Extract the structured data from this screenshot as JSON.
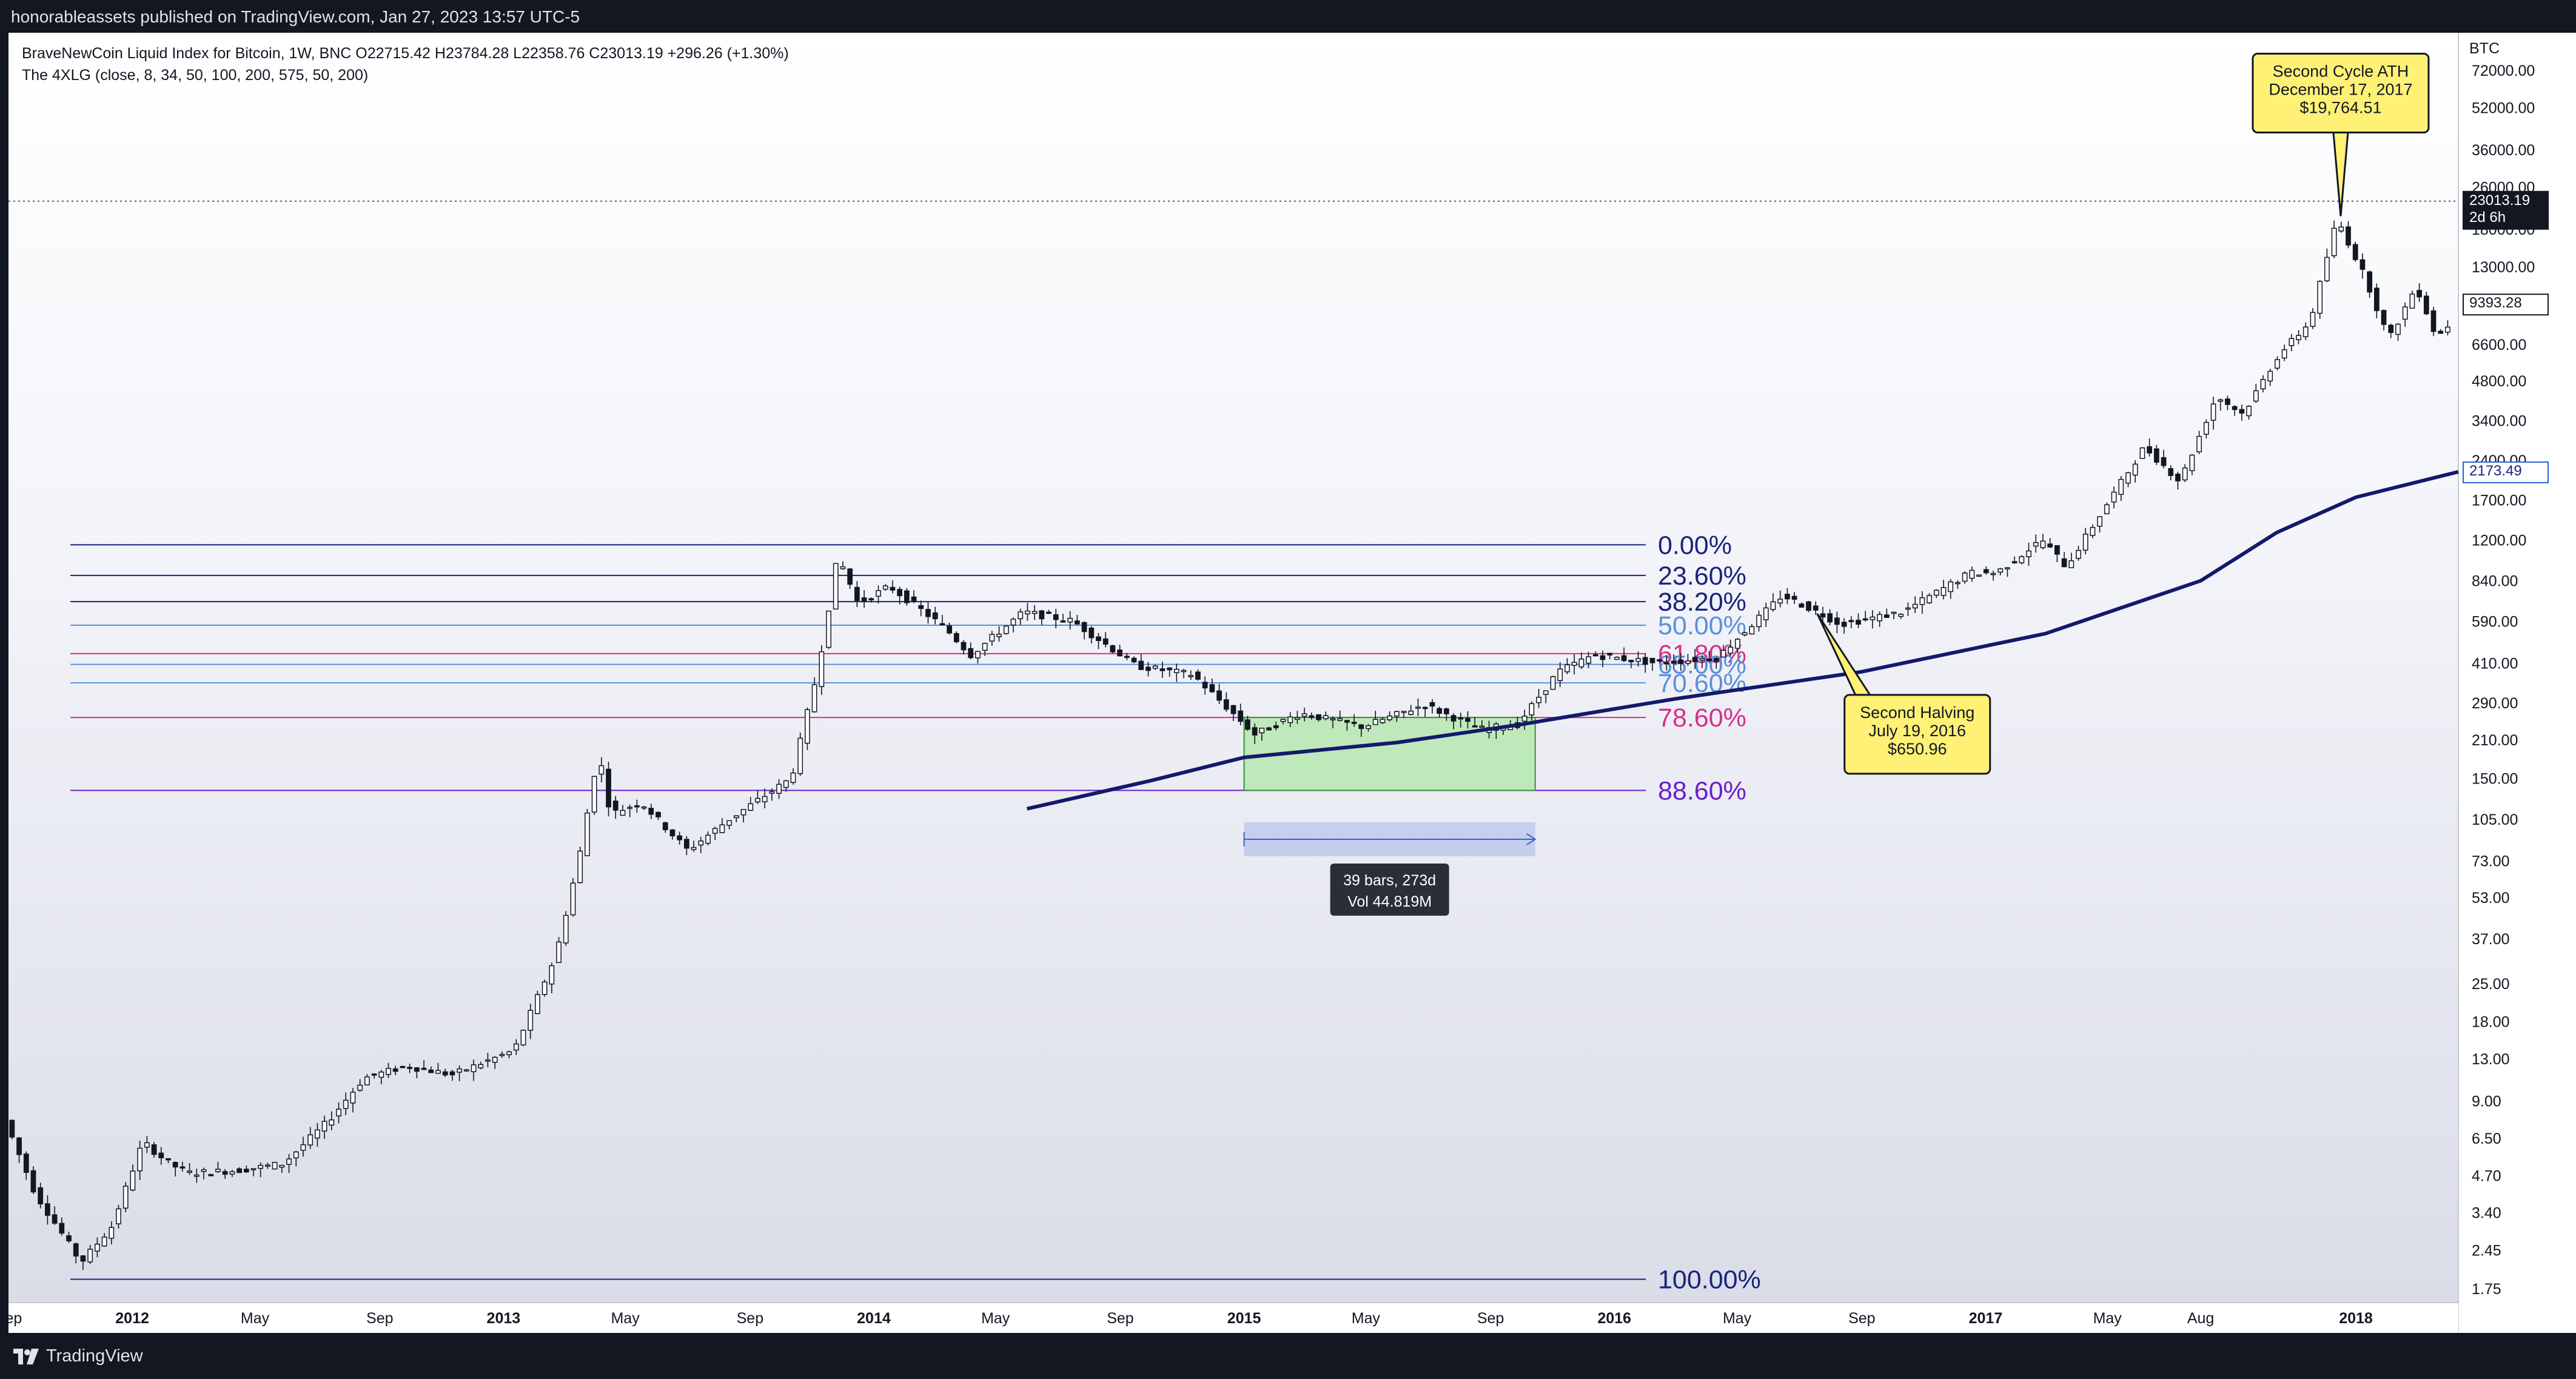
{
  "header": {
    "published": "honorableassets published on TradingView.com, Jan 27, 2023 13:57 UTC-5"
  },
  "legend": {
    "symbol_line": "BraveNewCoin Liquid Index for Bitcoin, 1W, BNC  O22715.42  H23784.28  L22358.76  C23013.19  +296.26 (+1.30%)",
    "indicator_line": "The 4XLG (close, 8, 34, 50, 100, 200, 575, 50, 200)"
  },
  "footer": {
    "brand": "TradingView"
  },
  "colors": {
    "candle_up": "#ffffff",
    "candle_down": "#131722",
    "moving_average": "#131a6b",
    "fib_navy": "#1a237e",
    "fib_blue": "#5b8fdd",
    "fib_pink": "#d6308a",
    "fib_purple": "#6a1fc9",
    "range_box": "#b6e8b0",
    "callout": "#fff176",
    "axis_text": "#131722"
  },
  "chart_data": {
    "type": "candlestick",
    "title": "BraveNewCoin Liquid Index for Bitcoin, 1W, BNC",
    "currency": "BTC",
    "y_scale": "log",
    "ylim": [
      1.55,
      100000
    ],
    "x_range": [
      "2011-09-01",
      "2018-04-12"
    ],
    "y_ticks": [
      72000,
      52000,
      36000,
      26000,
      18000,
      13000,
      6600,
      4800,
      3400,
      2400,
      1700,
      1200,
      840,
      590,
      410,
      290,
      210,
      150,
      105,
      73,
      53,
      37,
      25,
      18,
      13,
      9,
      6.5,
      4.7,
      3.4,
      2.45,
      1.75
    ],
    "y_tick_labels": [
      "72000.00",
      "52000.00",
      "36000.00",
      "26000.00",
      "18000.00",
      "13000.00",
      "6600.00",
      "4800.00",
      "3400.00",
      "2400.00",
      "1700.00",
      "1200.00",
      "840.00",
      "590.00",
      "410.00",
      "290.00",
      "210.00",
      "150.00",
      "105.00",
      "73.00",
      "53.00",
      "37.00",
      "25.00",
      "18.00",
      "13.00",
      "9.00",
      "6.50",
      "4.70",
      "3.40",
      "2.45",
      "1.75"
    ],
    "x_ticks": [
      {
        "date": "2011-09-01",
        "label": "Sep",
        "bold": false
      },
      {
        "date": "2012-01-01",
        "label": "2012",
        "bold": true
      },
      {
        "date": "2012-05-01",
        "label": "May",
        "bold": false
      },
      {
        "date": "2012-09-01",
        "label": "Sep",
        "bold": false
      },
      {
        "date": "2013-01-01",
        "label": "2013",
        "bold": true
      },
      {
        "date": "2013-05-01",
        "label": "May",
        "bold": false
      },
      {
        "date": "2013-09-01",
        "label": "Sep",
        "bold": false
      },
      {
        "date": "2014-01-01",
        "label": "2014",
        "bold": true
      },
      {
        "date": "2014-05-01",
        "label": "May",
        "bold": false
      },
      {
        "date": "2014-09-01",
        "label": "Sep",
        "bold": false
      },
      {
        "date": "2015-01-01",
        "label": "2015",
        "bold": true
      },
      {
        "date": "2015-05-01",
        "label": "May",
        "bold": false
      },
      {
        "date": "2015-09-01",
        "label": "Sep",
        "bold": false
      },
      {
        "date": "2016-01-01",
        "label": "2016",
        "bold": true
      },
      {
        "date": "2016-05-01",
        "label": "May",
        "bold": false
      },
      {
        "date": "2016-09-01",
        "label": "Sep",
        "bold": false
      },
      {
        "date": "2017-01-01",
        "label": "2017",
        "bold": true
      },
      {
        "date": "2017-05-01",
        "label": "May",
        "bold": false
      },
      {
        "date": "2017-08-01",
        "label": "Aug",
        "bold": false
      },
      {
        "date": "2018-01-01",
        "label": "2018",
        "bold": true
      }
    ],
    "price_path": [
      [
        "2011-09-01",
        7.6
      ],
      [
        "2011-10-01",
        4.0
      ],
      [
        "2011-11-15",
        2.2
      ],
      [
        "2011-12-15",
        3.0
      ],
      [
        "2012-01-15",
        6.3
      ],
      [
        "2012-02-10",
        5.2
      ],
      [
        "2012-03-01",
        4.8
      ],
      [
        "2012-04-15",
        4.9
      ],
      [
        "2012-06-01",
        5.2
      ],
      [
        "2012-07-15",
        7.5
      ],
      [
        "2012-08-20",
        11.0
      ],
      [
        "2012-10-01",
        12.2
      ],
      [
        "2012-11-15",
        11.3
      ],
      [
        "2013-01-15",
        14.0
      ],
      [
        "2013-02-25",
        32.0
      ],
      [
        "2013-03-20",
        75.0
      ],
      [
        "2013-04-08",
        190.0
      ],
      [
        "2013-04-20",
        110.0
      ],
      [
        "2013-05-20",
        122.0
      ],
      [
        "2013-07-05",
        80.0
      ],
      [
        "2013-08-15",
        105.0
      ],
      [
        "2013-10-15",
        150.0
      ],
      [
        "2013-11-10",
        380.0
      ],
      [
        "2013-11-30",
        1050.0
      ],
      [
        "2013-12-20",
        690.0
      ],
      [
        "2014-01-20",
        800.0
      ],
      [
        "2014-03-15",
        560.0
      ],
      [
        "2014-04-10",
        440.0
      ],
      [
        "2014-06-01",
        640.0
      ],
      [
        "2014-07-20",
        590.0
      ],
      [
        "2014-09-20",
        400.0
      ],
      [
        "2014-11-15",
        370.0
      ],
      [
        "2015-01-15",
        220.0
      ],
      [
        "2015-03-01",
        265.0
      ],
      [
        "2015-05-01",
        235.0
      ],
      [
        "2015-07-01",
        285.0
      ],
      [
        "2015-08-25",
        230.0
      ],
      [
        "2015-10-01",
        240.0
      ],
      [
        "2015-11-10",
        380.0
      ],
      [
        "2015-12-15",
        440.0
      ],
      [
        "2016-02-15",
        410.0
      ],
      [
        "2016-04-15",
        430.0
      ],
      [
        "2016-06-18",
        740.0
      ],
      [
        "2016-07-19",
        650.0
      ],
      [
        "2016-08-15",
        575.0
      ],
      [
        "2016-10-15",
        640.0
      ],
      [
        "2016-12-20",
        900.0
      ],
      [
        "2017-01-15",
        900.0
      ],
      [
        "2017-03-01",
        1200.0
      ],
      [
        "2017-03-25",
        950.0
      ],
      [
        "2017-05-15",
        1900.0
      ],
      [
        "2017-06-10",
        2700.0
      ],
      [
        "2017-07-15",
        2000.0
      ],
      [
        "2017-08-20",
        4200.0
      ],
      [
        "2017-09-15",
        3600.0
      ],
      [
        "2017-10-20",
        6000.0
      ],
      [
        "2017-11-20",
        8000.0
      ],
      [
        "2017-12-17",
        19764.51
      ],
      [
        "2018-01-15",
        11500.0
      ],
      [
        "2018-02-06",
        6900.0
      ],
      [
        "2018-03-05",
        11000.0
      ],
      [
        "2018-03-25",
        7000.0
      ],
      [
        "2018-04-10",
        8200.0
      ]
    ],
    "moving_average": [
      [
        "2014-06-01",
        115
      ],
      [
        "2014-10-01",
        147
      ],
      [
        "2015-01-01",
        180
      ],
      [
        "2015-06-01",
        205
      ],
      [
        "2015-10-01",
        240
      ],
      [
        "2016-03-01",
        300
      ],
      [
        "2016-09-01",
        380
      ],
      [
        "2017-03-01",
        530
      ],
      [
        "2017-08-01",
        840
      ],
      [
        "2017-10-15",
        1280
      ],
      [
        "2018-01-01",
        1740
      ],
      [
        "2018-04-12",
        2173.49
      ]
    ],
    "fib_levels": [
      {
        "label": "0.00%",
        "price": 1150,
        "color": "#1a237e"
      },
      {
        "label": "23.60%",
        "price": 880,
        "color": "#1a237e"
      },
      {
        "label": "38.20%",
        "price": 700,
        "color": "#1a237e"
      },
      {
        "label": "50.00%",
        "price": 570,
        "color": "#5b8fdd"
      },
      {
        "label": "61.80%",
        "price": 445,
        "color": "#d6308a"
      },
      {
        "label": "65.00%",
        "price": 405,
        "color": "#5b8fdd"
      },
      {
        "label": "70.60%",
        "price": 345,
        "color": "#5b8fdd"
      },
      {
        "label": "78.60%",
        "price": 255,
        "color": "#d6308a"
      },
      {
        "label": "88.60%",
        "price": 135,
        "color": "#6a1fc9"
      },
      {
        "label": "100.00%",
        "price": 1.9,
        "color": "#1a237e"
      }
    ],
    "fib_start_date": "2011-11-01",
    "fib_end_date": "2016-02-01",
    "range_box": {
      "start": "2015-01-01",
      "end": "2015-10-15",
      "low": 135,
      "high": 255
    },
    "measure": {
      "start": "2015-01-01",
      "end": "2015-10-15",
      "bars_label": "39 bars, 273d",
      "volume_label": "Vol 44.819M"
    },
    "annotations": [
      {
        "lines": [
          "Second Cycle ATH",
          "December 17, 2017",
          "$19,764.51"
        ],
        "date": "2017-12-17",
        "price": 19764.51,
        "position": "above"
      },
      {
        "lines": [
          "Second Halving",
          "July 19, 2016",
          "$650.96"
        ],
        "date": "2016-07-19",
        "price": 650.96,
        "position": "below-right"
      }
    ],
    "price_labels": [
      {
        "lines": [
          "23013.19",
          "2d 6h"
        ],
        "price": 23013.19,
        "style": "dark"
      },
      {
        "lines": [
          "9393.28"
        ],
        "price": 9393.28,
        "style": "outline"
      },
      {
        "lines": [
          "2173.49"
        ],
        "price": 2173.49,
        "style": "outline-blue"
      }
    ],
    "current_price": 23013.19
  }
}
